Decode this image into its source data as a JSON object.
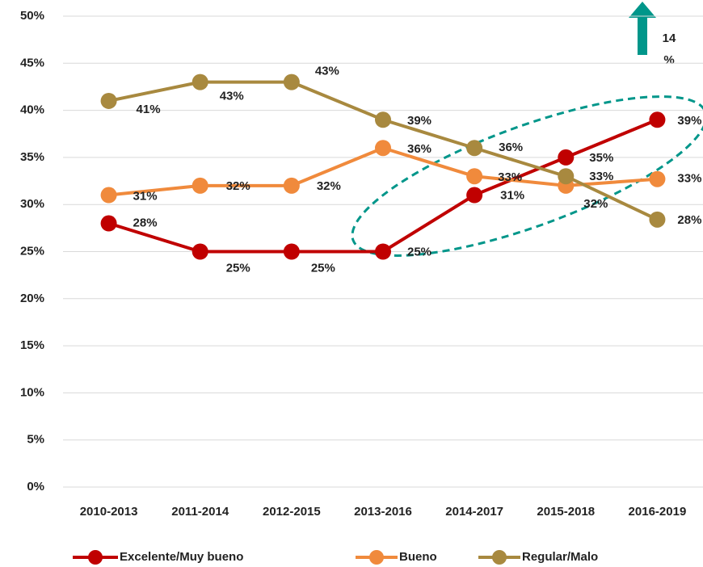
{
  "chart_data": {
    "type": "line",
    "categories": [
      "2010-2013",
      "2011-2014",
      "2012-2015",
      "2013-2016",
      "2014-2017",
      "2015-2018",
      "2016-2019"
    ],
    "series": [
      {
        "name": "Excelente/Muy bueno",
        "color": "#c00000",
        "values": [
          28,
          25,
          25,
          25,
          31,
          35,
          39
        ],
        "value_labels": [
          "28%",
          "25%",
          "25%",
          "25%",
          "31%",
          "35%",
          "39%"
        ]
      },
      {
        "name": "Bueno",
        "color": "#f08a3c",
        "values": [
          31,
          32,
          32,
          36,
          33,
          32,
          32.7
        ],
        "value_labels": [
          "31%",
          "32%",
          "32%",
          "36%",
          "33%",
          "32%",
          "33%"
        ]
      },
      {
        "name": "Regular/Malo",
        "color": "#a8893f",
        "values": [
          41,
          43,
          43,
          39,
          36,
          33,
          28.4
        ],
        "value_labels": [
          "41%",
          "43%",
          "43%",
          "39%",
          "36%",
          "33%",
          "28%"
        ]
      }
    ],
    "ylim": [
      0,
      50
    ],
    "yticks": [
      {
        "value": 0,
        "label": "0%"
      },
      {
        "value": 5,
        "label": "5%"
      },
      {
        "value": 10,
        "label": "10%"
      },
      {
        "value": 15,
        "label": "15%"
      },
      {
        "value": 20,
        "label": "20%"
      },
      {
        "value": 25,
        "label": "25%"
      },
      {
        "value": 30,
        "label": "30%"
      },
      {
        "value": 35,
        "label": "35%"
      },
      {
        "value": 40,
        "label": "40%"
      },
      {
        "value": 45,
        "label": "45%"
      },
      {
        "value": 50,
        "label": "50%"
      }
    ],
    "grid": true,
    "annotation": {
      "lines": [
        "14",
        "%"
      ]
    }
  }
}
